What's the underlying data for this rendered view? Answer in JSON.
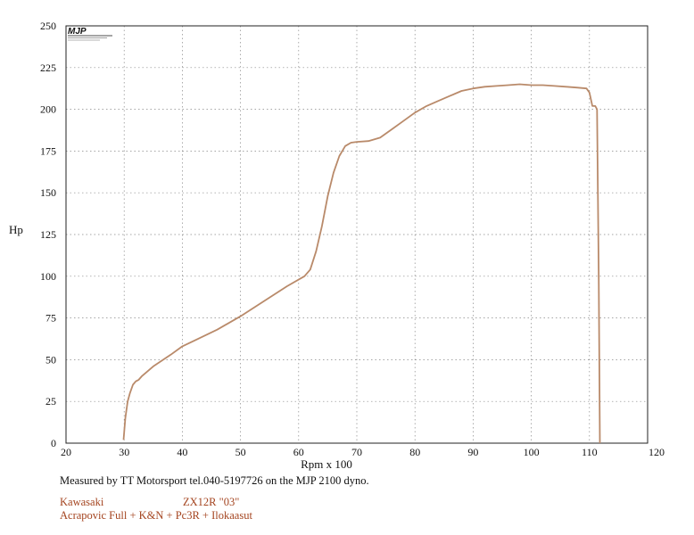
{
  "chart_data": {
    "type": "line",
    "xlabel": "Rpm x 100",
    "ylabel": "Hp",
    "xlim": [
      20,
      120
    ],
    "ylim": [
      0,
      250
    ],
    "xticks": [
      20,
      30,
      40,
      50,
      60,
      70,
      80,
      90,
      100,
      110,
      120
    ],
    "yticks": [
      0,
      25,
      50,
      75,
      100,
      125,
      150,
      175,
      200,
      225,
      250
    ],
    "grid": true,
    "line_color": "#b98a6a",
    "series": [
      {
        "x": [
          29.9,
          30.2,
          30.6,
          31.0,
          31.5,
          32.0,
          32.5,
          33.0,
          35.0,
          38.0,
          40.0,
          43.0,
          46.0,
          50.0,
          54.0,
          58.0,
          61.0,
          62.0,
          63.0,
          64.0,
          65.0,
          66.0,
          67.0,
          68.0,
          69.0,
          70.0,
          72.0,
          74.0,
          76.0,
          78.0,
          80.0,
          82.0,
          84.0,
          86.0,
          88.0,
          90.0,
          92.0,
          94.0,
          96.0,
          98.0,
          100.0,
          102.0,
          104.0,
          106.0,
          108.0,
          109.5,
          110.0,
          110.5,
          111.0,
          111.3,
          111.6,
          111.8
        ],
        "y": [
          2,
          15,
          25,
          30,
          35,
          37,
          38,
          40,
          46,
          53,
          58,
          63,
          68,
          76,
          85,
          94,
          100,
          104,
          115,
          130,
          148,
          162,
          172,
          178,
          180,
          180.5,
          181,
          183,
          188,
          193,
          198,
          202,
          205,
          208,
          211,
          212.5,
          213.5,
          214,
          214.5,
          215,
          214.5,
          214.5,
          214,
          213.5,
          213,
          212.5,
          210,
          202,
          202,
          200,
          100,
          0
        ]
      }
    ]
  },
  "captions": {
    "measured": "Measured by TT Motorsport tel.040-5197726 on the MJP 2100 dyno.",
    "make": "Kawasaki",
    "model": "ZX12R \"03\"",
    "mods": "Acrapovic Full + K&N + Pc3R + Ilokaasut"
  },
  "logo": {
    "name": "MJP",
    "tagline": "MOTORSPORT ENGINEERING"
  }
}
